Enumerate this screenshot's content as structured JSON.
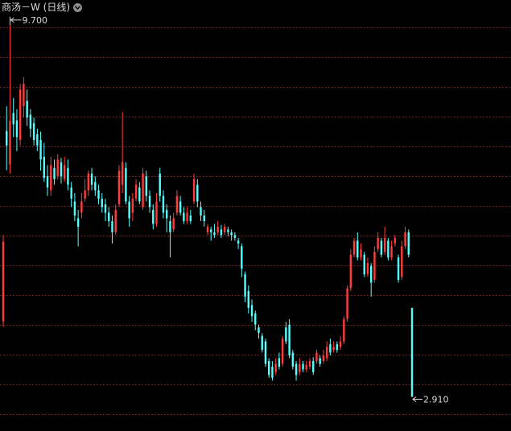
{
  "header": {
    "title": "商汤－W (日线)",
    "dropdown_icon": "chevron-down-icon"
  },
  "colors": {
    "background": "#000000",
    "grid": "#7a1e1e",
    "up": "#ff3b3b",
    "down": "#54ffff",
    "label_text": "#d6d6d6"
  },
  "chart_data": {
    "type": "candlestick",
    "title": "商汤－W (日线)",
    "ylim": [
      2.3,
      10.0
    ],
    "grid": true,
    "annotations": {
      "max_label": "9.700",
      "min_label": "2.910",
      "max_value": 9.7,
      "min_value": 2.91
    },
    "candles": [
      {
        "o": 4.26,
        "c": 5.68,
        "h": 5.8,
        "l": 4.16,
        "d": "up"
      },
      {
        "o": 7.66,
        "c": 7.4,
        "h": 8.1,
        "l": 6.96,
        "d": "down"
      },
      {
        "o": 7.06,
        "c": 7.84,
        "h": 9.7,
        "l": 6.9,
        "d": "up"
      },
      {
        "o": 7.98,
        "c": 7.78,
        "h": 8.25,
        "l": 7.55,
        "d": "down"
      },
      {
        "o": 7.85,
        "c": 7.55,
        "h": 8.05,
        "l": 7.3,
        "d": "down"
      },
      {
        "o": 7.5,
        "c": 8.4,
        "h": 8.5,
        "l": 7.4,
        "d": "up"
      },
      {
        "o": 8.1,
        "c": 8.5,
        "h": 8.62,
        "l": 7.9,
        "d": "up"
      },
      {
        "o": 8.2,
        "c": 7.9,
        "h": 8.4,
        "l": 7.75,
        "d": "down"
      },
      {
        "o": 7.95,
        "c": 7.7,
        "h": 8.05,
        "l": 7.55,
        "d": "down"
      },
      {
        "o": 7.8,
        "c": 7.5,
        "h": 7.9,
        "l": 7.4,
        "d": "down"
      },
      {
        "o": 7.6,
        "c": 7.4,
        "h": 7.7,
        "l": 7.3,
        "d": "down"
      },
      {
        "o": 7.5,
        "c": 7.15,
        "h": 7.65,
        "l": 6.95,
        "d": "down"
      },
      {
        "o": 7.2,
        "c": 6.82,
        "h": 7.45,
        "l": 6.75,
        "d": "down"
      },
      {
        "o": 6.85,
        "c": 6.65,
        "h": 7.05,
        "l": 6.5,
        "d": "down"
      },
      {
        "o": 6.6,
        "c": 7.05,
        "h": 7.2,
        "l": 6.5,
        "d": "up"
      },
      {
        "o": 7.0,
        "c": 6.8,
        "h": 7.15,
        "l": 6.7,
        "d": "down"
      },
      {
        "o": 6.85,
        "c": 7.15,
        "h": 7.25,
        "l": 6.8,
        "d": "up"
      },
      {
        "o": 7.1,
        "c": 6.85,
        "h": 7.18,
        "l": 6.72,
        "d": "down"
      },
      {
        "o": 6.8,
        "c": 7.05,
        "h": 7.2,
        "l": 6.75,
        "d": "up"
      },
      {
        "o": 7.0,
        "c": 6.7,
        "h": 7.15,
        "l": 6.6,
        "d": "down"
      },
      {
        "o": 6.65,
        "c": 6.45,
        "h": 6.75,
        "l": 6.3,
        "d": "down"
      },
      {
        "o": 6.4,
        "c": 6.15,
        "h": 6.55,
        "l": 6.05,
        "d": "down"
      },
      {
        "o": 6.1,
        "c": 5.95,
        "h": 6.25,
        "l": 5.6,
        "d": "down"
      },
      {
        "o": 6.2,
        "c": 6.4,
        "h": 6.55,
        "l": 6.1,
        "d": "up"
      },
      {
        "o": 6.45,
        "c": 6.6,
        "h": 6.8,
        "l": 6.4,
        "d": "up"
      },
      {
        "o": 6.6,
        "c": 6.9,
        "h": 6.95,
        "l": 6.5,
        "d": "up"
      },
      {
        "o": 6.9,
        "c": 6.7,
        "h": 7.0,
        "l": 6.6,
        "d": "down"
      },
      {
        "o": 6.75,
        "c": 6.6,
        "h": 6.85,
        "l": 6.5,
        "d": "down"
      },
      {
        "o": 6.6,
        "c": 6.45,
        "h": 6.7,
        "l": 6.35,
        "d": "down"
      },
      {
        "o": 6.45,
        "c": 6.3,
        "h": 6.55,
        "l": 6.2,
        "d": "down"
      },
      {
        "o": 6.35,
        "c": 6.2,
        "h": 6.45,
        "l": 6.05,
        "d": "down"
      },
      {
        "o": 6.2,
        "c": 6.05,
        "h": 6.3,
        "l": 5.95,
        "d": "down"
      },
      {
        "o": 6.05,
        "c": 5.85,
        "h": 6.15,
        "l": 5.65,
        "d": "down"
      },
      {
        "o": 5.85,
        "c": 6.25,
        "h": 6.35,
        "l": 5.8,
        "d": "up"
      },
      {
        "o": 6.35,
        "c": 6.95,
        "h": 7.05,
        "l": 6.3,
        "d": "up"
      },
      {
        "o": 6.7,
        "c": 7.1,
        "h": 8.0,
        "l": 6.55,
        "d": "up"
      },
      {
        "o": 7.0,
        "c": 6.4,
        "h": 7.1,
        "l": 6.35,
        "d": "down"
      },
      {
        "o": 6.4,
        "c": 6.1,
        "h": 6.5,
        "l": 5.95,
        "d": "down"
      },
      {
        "o": 6.2,
        "c": 6.45,
        "h": 6.55,
        "l": 6.05,
        "d": "up"
      },
      {
        "o": 6.45,
        "c": 6.7,
        "h": 6.8,
        "l": 6.4,
        "d": "up"
      },
      {
        "o": 6.65,
        "c": 6.4,
        "h": 6.75,
        "l": 6.35,
        "d": "down"
      },
      {
        "o": 6.3,
        "c": 6.9,
        "h": 7.0,
        "l": 6.25,
        "d": "up"
      },
      {
        "o": 6.85,
        "c": 6.5,
        "h": 6.95,
        "l": 6.4,
        "d": "down"
      },
      {
        "o": 6.5,
        "c": 6.3,
        "h": 6.6,
        "l": 6.2,
        "d": "down"
      },
      {
        "o": 6.25,
        "c": 6.0,
        "h": 6.35,
        "l": 5.9,
        "d": "down"
      },
      {
        "o": 6.0,
        "c": 6.4,
        "h": 6.55,
        "l": 5.95,
        "d": "up"
      },
      {
        "o": 6.9,
        "c": 6.5,
        "h": 7.0,
        "l": 6.4,
        "d": "down"
      },
      {
        "o": 6.5,
        "c": 6.2,
        "h": 6.6,
        "l": 6.1,
        "d": "down"
      },
      {
        "o": 6.25,
        "c": 6.1,
        "h": 6.35,
        "l": 5.85,
        "d": "down"
      },
      {
        "o": 6.05,
        "c": 5.85,
        "h": 6.15,
        "l": 5.4,
        "d": "down"
      },
      {
        "o": 5.9,
        "c": 6.1,
        "h": 6.2,
        "l": 5.85,
        "d": "up"
      },
      {
        "o": 6.2,
        "c": 6.5,
        "h": 6.6,
        "l": 6.15,
        "d": "up"
      },
      {
        "o": 6.4,
        "c": 6.2,
        "h": 6.5,
        "l": 6.15,
        "d": "down"
      },
      {
        "o": 6.2,
        "c": 6.05,
        "h": 6.3,
        "l": 6.0,
        "d": "down"
      },
      {
        "o": 6.05,
        "c": 6.2,
        "h": 6.3,
        "l": 6.0,
        "d": "up"
      },
      {
        "o": 6.15,
        "c": 6.05,
        "h": 6.25,
        "l": 6.0,
        "d": "down"
      },
      {
        "o": 6.4,
        "c": 6.8,
        "h": 6.9,
        "l": 6.35,
        "d": "up"
      },
      {
        "o": 6.7,
        "c": 6.4,
        "h": 6.8,
        "l": 6.3,
        "d": "down"
      },
      {
        "o": 6.3,
        "c": 6.15,
        "h": 6.4,
        "l": 6.05,
        "d": "down"
      },
      {
        "o": 6.15,
        "c": 6.05,
        "h": 6.25,
        "l": 5.95,
        "d": "down"
      },
      {
        "o": 5.85,
        "c": 5.95,
        "h": 6.0,
        "l": 5.8,
        "d": "up"
      },
      {
        "o": 5.9,
        "c": 5.85,
        "h": 5.95,
        "l": 5.7,
        "d": "down"
      },
      {
        "o": 5.85,
        "c": 5.8,
        "h": 6.0,
        "l": 5.75,
        "d": "down"
      },
      {
        "o": 5.85,
        "c": 5.95,
        "h": 6.05,
        "l": 5.8,
        "d": "up"
      },
      {
        "o": 5.9,
        "c": 5.8,
        "h": 5.98,
        "l": 5.75,
        "d": "down"
      },
      {
        "o": 5.85,
        "c": 5.95,
        "h": 6.0,
        "l": 5.8,
        "d": "up"
      },
      {
        "o": 5.9,
        "c": 5.85,
        "h": 5.95,
        "l": 5.78,
        "d": "down"
      },
      {
        "o": 5.85,
        "c": 5.8,
        "h": 5.9,
        "l": 5.7,
        "d": "down"
      },
      {
        "o": 5.8,
        "c": 5.75,
        "h": 5.85,
        "l": 5.7,
        "d": "down"
      },
      {
        "o": 5.7,
        "c": 5.65,
        "h": 5.75,
        "l": 5.55,
        "d": "down"
      },
      {
        "o": 5.6,
        "c": 5.2,
        "h": 5.65,
        "l": 5.05,
        "d": "down"
      },
      {
        "o": 5.1,
        "c": 4.7,
        "h": 5.15,
        "l": 4.6,
        "d": "down"
      },
      {
        "o": 4.8,
        "c": 4.5,
        "h": 4.9,
        "l": 4.4,
        "d": "down"
      },
      {
        "o": 4.55,
        "c": 4.35,
        "h": 4.65,
        "l": 4.25,
        "d": "down"
      },
      {
        "o": 4.4,
        "c": 4.2,
        "h": 4.45,
        "l": 4.1,
        "d": "down"
      },
      {
        "o": 4.15,
        "c": 4.05,
        "h": 4.2,
        "l": 3.95,
        "d": "down"
      },
      {
        "o": 4.0,
        "c": 3.75,
        "h": 4.05,
        "l": 3.7,
        "d": "down"
      },
      {
        "o": 3.9,
        "c": 3.5,
        "h": 3.95,
        "l": 3.45,
        "d": "down"
      },
      {
        "o": 3.55,
        "c": 3.3,
        "h": 3.6,
        "l": 3.25,
        "d": "down"
      },
      {
        "o": 3.45,
        "c": 3.25,
        "h": 3.55,
        "l": 3.2,
        "d": "down"
      },
      {
        "o": 3.35,
        "c": 3.5,
        "h": 3.6,
        "l": 3.3,
        "d": "up"
      },
      {
        "o": 3.6,
        "c": 3.45,
        "h": 3.7,
        "l": 3.4,
        "d": "down"
      },
      {
        "o": 3.5,
        "c": 3.95,
        "h": 4.0,
        "l": 3.45,
        "d": "up"
      },
      {
        "o": 4.15,
        "c": 3.9,
        "h": 4.25,
        "l": 3.85,
        "d": "down"
      },
      {
        "o": 4.2,
        "c": 3.65,
        "h": 4.3,
        "l": 3.6,
        "d": "down"
      },
      {
        "o": 3.7,
        "c": 3.45,
        "h": 3.75,
        "l": 3.4,
        "d": "down"
      },
      {
        "o": 3.5,
        "c": 3.3,
        "h": 3.55,
        "l": 3.2,
        "d": "down"
      },
      {
        "o": 3.35,
        "c": 3.5,
        "h": 3.6,
        "l": 3.3,
        "d": "up"
      },
      {
        "o": 3.5,
        "c": 3.4,
        "h": 3.55,
        "l": 3.35,
        "d": "down"
      },
      {
        "o": 3.4,
        "c": 3.48,
        "h": 3.55,
        "l": 3.35,
        "d": "up"
      },
      {
        "o": 3.45,
        "c": 3.55,
        "h": 3.6,
        "l": 3.4,
        "d": "up"
      },
      {
        "o": 3.55,
        "c": 3.35,
        "h": 3.62,
        "l": 3.3,
        "d": "down"
      },
      {
        "o": 3.55,
        "c": 3.7,
        "h": 3.75,
        "l": 3.5,
        "d": "up"
      },
      {
        "o": 3.6,
        "c": 3.5,
        "h": 3.65,
        "l": 3.45,
        "d": "down"
      },
      {
        "o": 3.55,
        "c": 3.65,
        "h": 3.75,
        "l": 3.5,
        "d": "up"
      },
      {
        "o": 3.6,
        "c": 3.8,
        "h": 3.9,
        "l": 3.55,
        "d": "up"
      },
      {
        "o": 3.85,
        "c": 3.7,
        "h": 3.95,
        "l": 3.65,
        "d": "down"
      },
      {
        "o": 3.75,
        "c": 3.8,
        "h": 3.9,
        "l": 3.7,
        "d": "up"
      },
      {
        "o": 3.85,
        "c": 3.75,
        "h": 3.9,
        "l": 3.7,
        "d": "down"
      },
      {
        "o": 3.8,
        "c": 3.9,
        "h": 4.0,
        "l": 3.75,
        "d": "up"
      },
      {
        "o": 3.9,
        "c": 4.3,
        "h": 4.35,
        "l": 3.85,
        "d": "up"
      },
      {
        "o": 4.3,
        "c": 4.85,
        "h": 4.9,
        "l": 4.25,
        "d": "up"
      },
      {
        "o": 4.85,
        "c": 5.45,
        "h": 5.55,
        "l": 4.8,
        "d": "up"
      },
      {
        "o": 5.45,
        "c": 5.7,
        "h": 5.75,
        "l": 5.4,
        "d": "up"
      },
      {
        "o": 5.7,
        "c": 5.4,
        "h": 5.85,
        "l": 5.35,
        "d": "down"
      },
      {
        "o": 5.4,
        "c": 5.55,
        "h": 5.65,
        "l": 5.35,
        "d": "up"
      },
      {
        "o": 5.45,
        "c": 5.1,
        "h": 5.5,
        "l": 5.05,
        "d": "down"
      },
      {
        "o": 5.1,
        "c": 5.3,
        "h": 5.4,
        "l": 5.05,
        "d": "up"
      },
      {
        "o": 5.25,
        "c": 4.95,
        "h": 5.3,
        "l": 4.7,
        "d": "down"
      },
      {
        "o": 5.0,
        "c": 5.5,
        "h": 5.6,
        "l": 4.95,
        "d": "up"
      },
      {
        "o": 5.55,
        "c": 5.75,
        "h": 5.85,
        "l": 5.5,
        "d": "up"
      },
      {
        "o": 5.7,
        "c": 5.45,
        "h": 5.75,
        "l": 5.4,
        "d": "down"
      },
      {
        "o": 5.5,
        "c": 5.75,
        "h": 5.95,
        "l": 5.45,
        "d": "up"
      },
      {
        "o": 5.7,
        "c": 5.4,
        "h": 5.75,
        "l": 5.35,
        "d": "down"
      },
      {
        "o": 5.4,
        "c": 5.6,
        "h": 5.7,
        "l": 5.35,
        "d": "up"
      },
      {
        "o": 5.65,
        "c": 5.75,
        "h": 5.8,
        "l": 5.6,
        "d": "up"
      },
      {
        "o": 5.4,
        "c": 5.0,
        "h": 5.45,
        "l": 4.95,
        "d": "down"
      },
      {
        "o": 5.05,
        "c": 5.6,
        "h": 5.7,
        "l": 5.0,
        "d": "up"
      },
      {
        "o": 5.6,
        "c": 5.85,
        "h": 5.95,
        "l": 5.55,
        "d": "up"
      },
      {
        "o": 5.85,
        "c": 5.45,
        "h": 5.9,
        "l": 5.4,
        "d": "down"
      },
      {
        "o": 4.5,
        "c": 2.91,
        "h": 4.5,
        "l": 2.91,
        "d": "down"
      }
    ]
  }
}
